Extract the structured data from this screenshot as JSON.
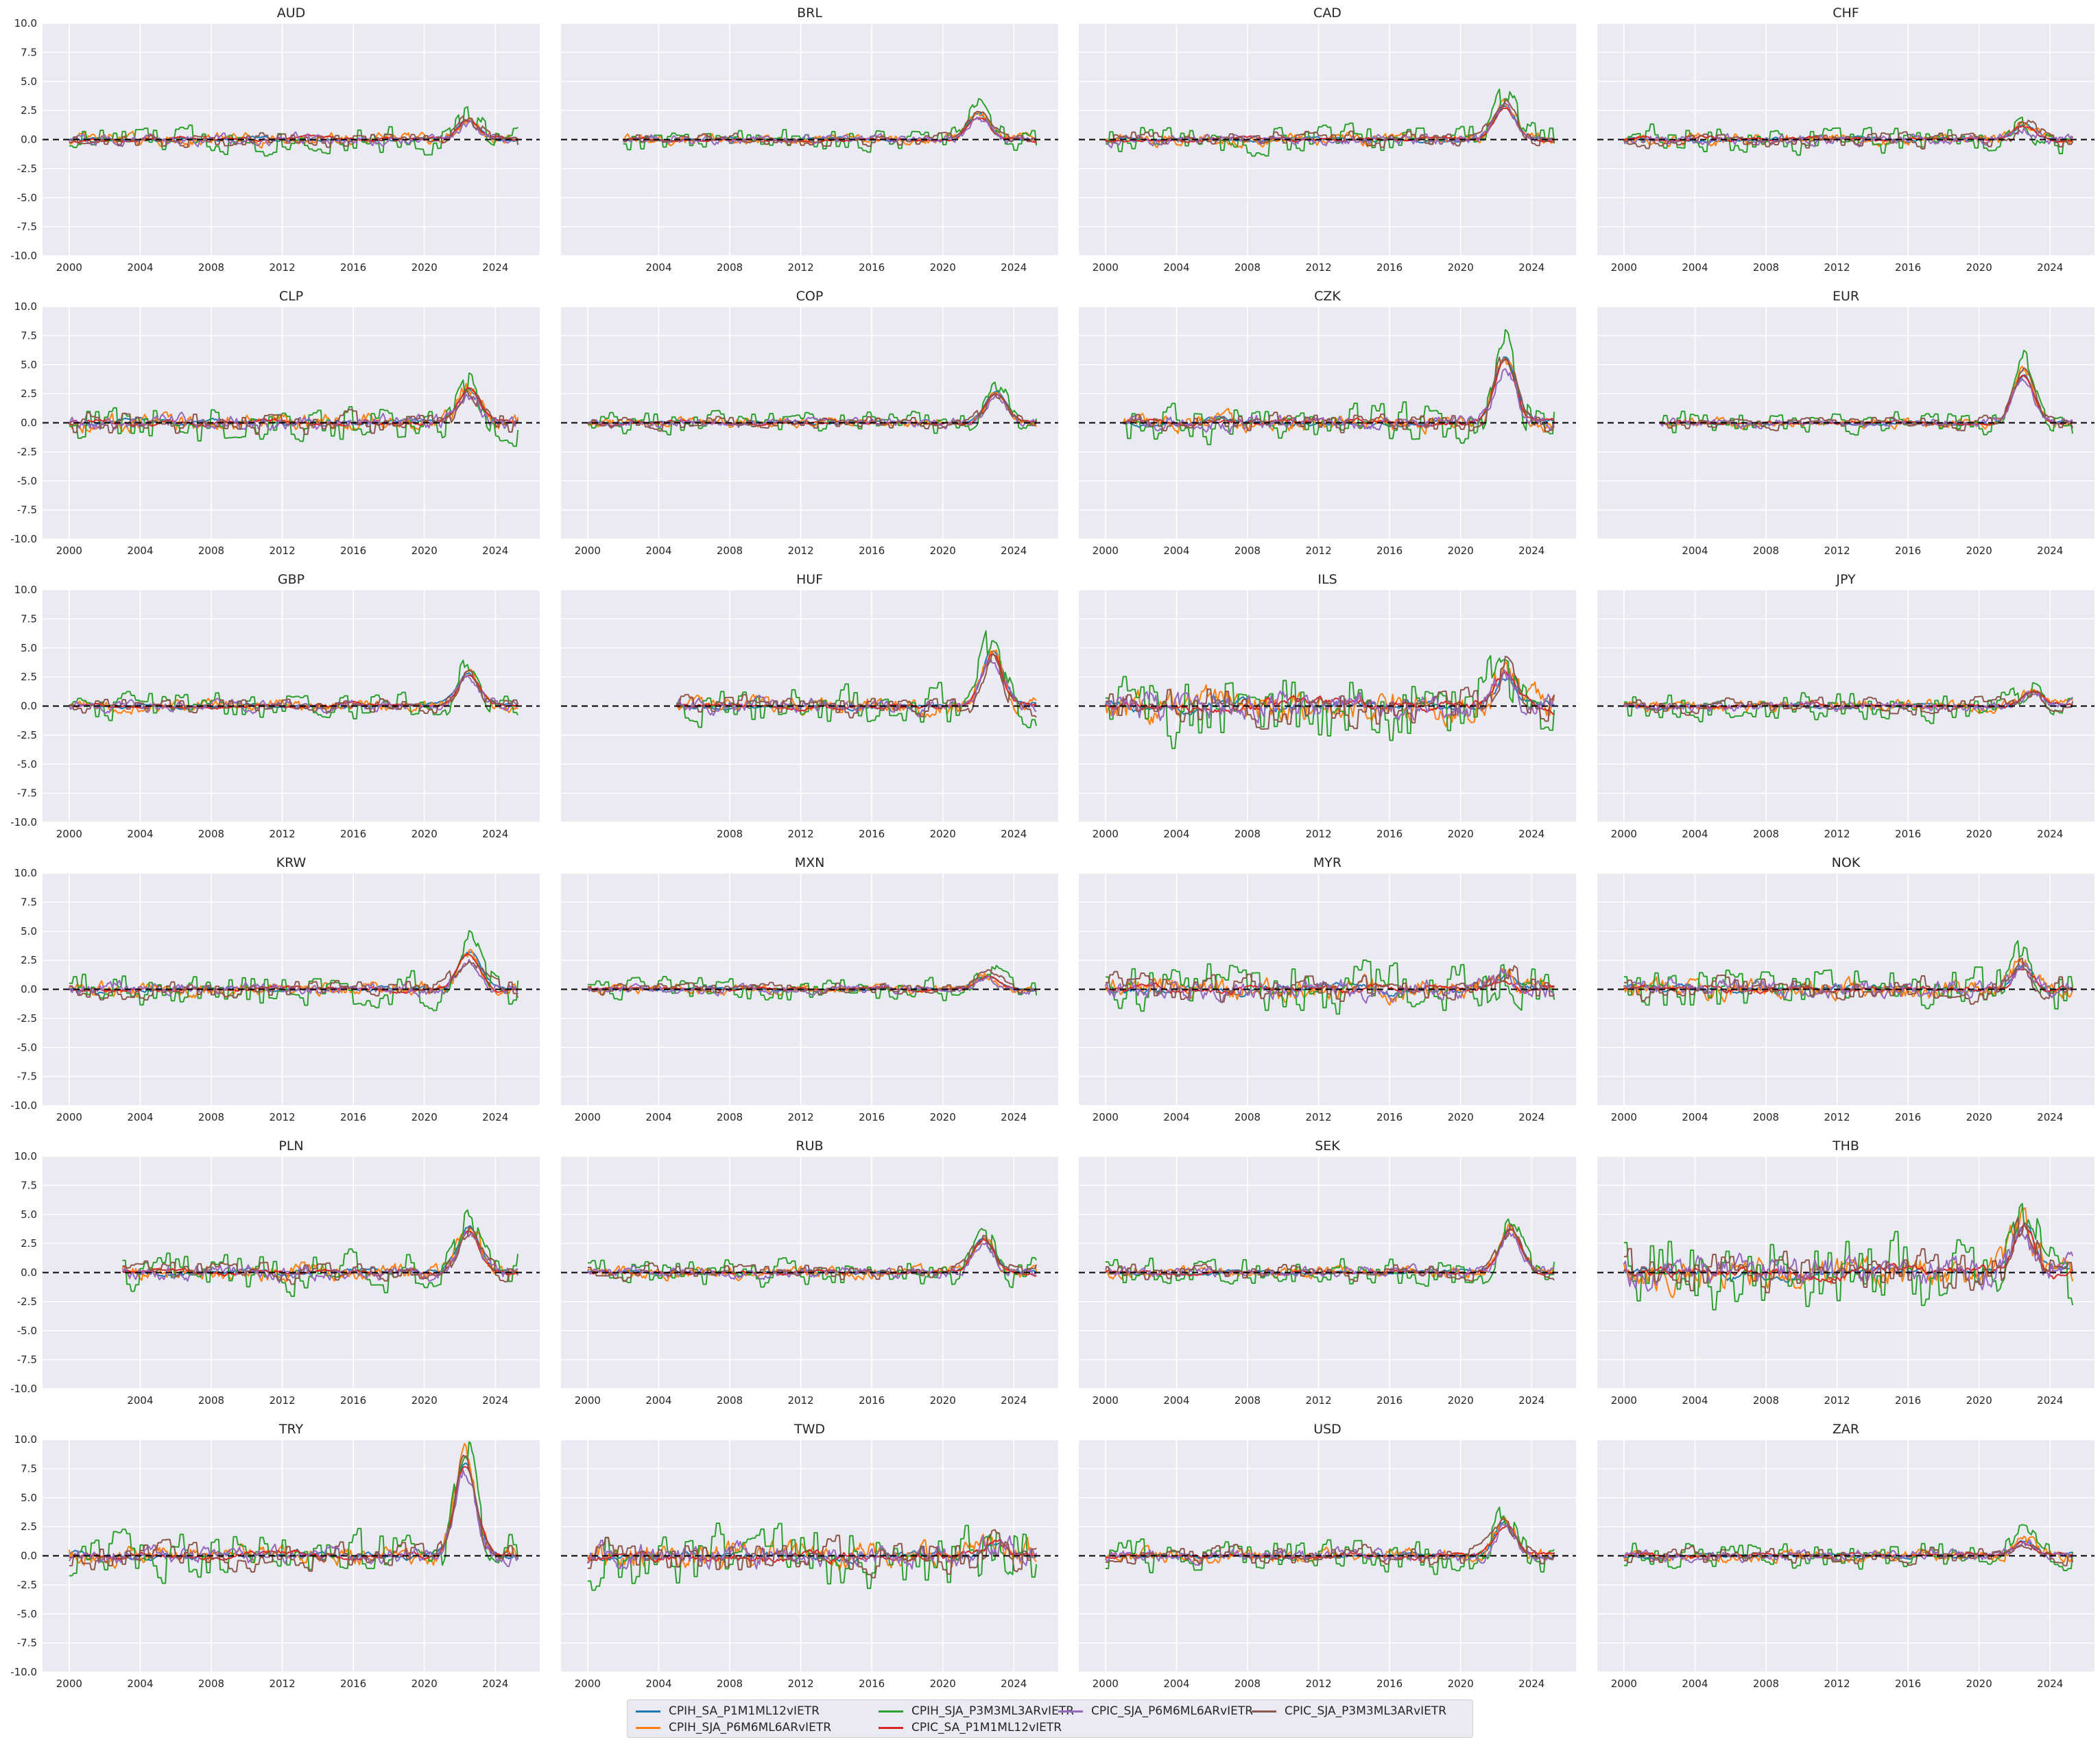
{
  "chart_data": {
    "type": "line",
    "layout": "small-multiples",
    "ylim": [
      -10,
      10
    ],
    "yticks": [
      "10.0",
      "7.5",
      "5.0",
      "2.5",
      "0.0",
      "-2.5",
      "-5.0",
      "-7.5",
      "-10.0"
    ],
    "xticks_default": [
      "2000",
      "2004",
      "2008",
      "2012",
      "2016",
      "2020",
      "2024"
    ],
    "reference_line": {
      "y": 0,
      "style": "dashed",
      "color": "#000000"
    },
    "grid": true,
    "legend_placement": "bottom-center",
    "series_names": [
      "CPIH_SA_P1M1ML12vIETR",
      "CPIH_SJA_P6M6ML6ARvIETR",
      "CPIH_SJA_P3M3ML3ARvIETR",
      "CPIC_SA_P1M1ML12vIETR",
      "CPIC_SJA_P6M6ML6ARvIETR",
      "CPIC_SJA_P3M3ML3ARvIETR"
    ],
    "series_colors": [
      "#1f77b4",
      "#ff7f0e",
      "#2ca02c",
      "#d62728",
      "#9467bd",
      "#8c564b"
    ],
    "panels": [
      {
        "title": "AUD",
        "start": 2000,
        "xticks": [
          "2000",
          "2004",
          "2008",
          "2012",
          "2016",
          "2020",
          "2024"
        ],
        "peak_year": 2022.5,
        "peak": 2.0,
        "vol": 0.5
      },
      {
        "title": "BRL",
        "start": 2002,
        "xticks": [
          "2004",
          "2008",
          "2012",
          "2016",
          "2020",
          "2024"
        ],
        "peak_year": 2022.0,
        "peak": 2.5,
        "vol": 0.4
      },
      {
        "title": "CAD",
        "start": 2000,
        "xticks": [
          "2000",
          "2004",
          "2008",
          "2012",
          "2016",
          "2020",
          "2024"
        ],
        "peak_year": 2022.5,
        "peak": 3.5,
        "vol": 0.5
      },
      {
        "title": "CHF",
        "start": 2000,
        "xticks": [
          "2000",
          "2004",
          "2008",
          "2012",
          "2016",
          "2020",
          "2024"
        ],
        "peak_year": 2022.5,
        "peak": 1.5,
        "vol": 0.5
      },
      {
        "title": "CLP",
        "start": 2000,
        "xticks": [
          "2000",
          "2004",
          "2008",
          "2012",
          "2016",
          "2020",
          "2024"
        ],
        "peak_year": 2022.5,
        "peak": 3.5,
        "vol": 0.7
      },
      {
        "title": "COP",
        "start": 2000,
        "xticks": [
          "2000",
          "2004",
          "2008",
          "2012",
          "2016",
          "2020",
          "2024"
        ],
        "peak_year": 2023.0,
        "peak": 3.0,
        "vol": 0.4
      },
      {
        "title": "CZK",
        "start": 2001,
        "xticks": [
          "2000",
          "2004",
          "2008",
          "2012",
          "2016",
          "2020",
          "2024"
        ],
        "peak_year": 2022.5,
        "peak": 6.5,
        "vol": 0.7
      },
      {
        "title": "EUR",
        "start": 2002,
        "xticks": [
          "2004",
          "2008",
          "2012",
          "2016",
          "2020",
          "2024"
        ],
        "peak_year": 2022.5,
        "peak": 5.0,
        "vol": 0.4
      },
      {
        "title": "GBP",
        "start": 2000,
        "xticks": [
          "2000",
          "2004",
          "2008",
          "2012",
          "2016",
          "2020",
          "2024"
        ],
        "peak_year": 2022.5,
        "peak": 3.2,
        "vol": 0.5
      },
      {
        "title": "HUF",
        "start": 2005,
        "xticks": [
          "2008",
          "2012",
          "2016",
          "2020",
          "2024"
        ],
        "peak_year": 2022.8,
        "peak": 5.5,
        "vol": 0.7
      },
      {
        "title": "ILS",
        "start": 2000,
        "xticks": [
          "2000",
          "2004",
          "2008",
          "2012",
          "2016",
          "2020",
          "2024"
        ],
        "peak_year": 2022.5,
        "peak": 3.0,
        "vol": 1.3
      },
      {
        "title": "JPY",
        "start": 2000,
        "xticks": [
          "2000",
          "2004",
          "2008",
          "2012",
          "2016",
          "2020",
          "2024"
        ],
        "peak_year": 2023.0,
        "peak": 1.5,
        "vol": 0.5
      },
      {
        "title": "KRW",
        "start": 2000,
        "xticks": [
          "2000",
          "2004",
          "2008",
          "2012",
          "2016",
          "2020",
          "2024"
        ],
        "peak_year": 2022.5,
        "peak": 3.8,
        "vol": 0.6
      },
      {
        "title": "MXN",
        "start": 2000,
        "xticks": [
          "2000",
          "2004",
          "2008",
          "2012",
          "2016",
          "2020",
          "2024"
        ],
        "peak_year": 2022.5,
        "peak": 1.4,
        "vol": 0.4
      },
      {
        "title": "MYR",
        "start": 2000,
        "xticks": [
          "2000",
          "2004",
          "2008",
          "2012",
          "2016",
          "2020",
          "2024"
        ],
        "peak_year": 2022.5,
        "peak": 1.5,
        "vol": 0.9
      },
      {
        "title": "NOK",
        "start": 2000,
        "xticks": [
          "2000",
          "2004",
          "2008",
          "2012",
          "2016",
          "2020",
          "2024"
        ],
        "peak_year": 2022.5,
        "peak": 2.5,
        "vol": 0.8
      },
      {
        "title": "PLN",
        "start": 2003,
        "xticks": [
          "2004",
          "2008",
          "2012",
          "2016",
          "2020",
          "2024"
        ],
        "peak_year": 2022.5,
        "peak": 4.5,
        "vol": 0.7
      },
      {
        "title": "RUB",
        "start": 2000,
        "xticks": [
          "2000",
          "2004",
          "2008",
          "2012",
          "2016",
          "2020",
          "2024"
        ],
        "peak_year": 2022.3,
        "peak": 3.3,
        "vol": 0.5
      },
      {
        "title": "SEK",
        "start": 2000,
        "xticks": [
          "2000",
          "2004",
          "2008",
          "2012",
          "2016",
          "2020",
          "2024"
        ],
        "peak_year": 2022.8,
        "peak": 4.5,
        "vol": 0.5
      },
      {
        "title": "THB",
        "start": 2000,
        "xticks": [
          "2000",
          "2004",
          "2008",
          "2012",
          "2016",
          "2020",
          "2024"
        ],
        "peak_year": 2022.5,
        "peak": 5.0,
        "vol": 1.3
      },
      {
        "title": "TRY",
        "start": 2000,
        "xticks": [
          "2000",
          "2004",
          "2008",
          "2012",
          "2016",
          "2020",
          "2024"
        ],
        "peak_year": 2022.3,
        "peak": 9.5,
        "vol": 0.8
      },
      {
        "title": "TWD",
        "start": 2000,
        "xticks": [
          "2000",
          "2004",
          "2008",
          "2012",
          "2016",
          "2020",
          "2024"
        ],
        "peak_year": 2023.0,
        "peak": 1.5,
        "vol": 1.1
      },
      {
        "title": "USD",
        "start": 2000,
        "xticks": [
          "2000",
          "2004",
          "2008",
          "2012",
          "2016",
          "2020",
          "2024"
        ],
        "peak_year": 2022.5,
        "peak": 3.2,
        "vol": 0.6
      },
      {
        "title": "ZAR",
        "start": 2000,
        "xticks": [
          "2000",
          "2004",
          "2008",
          "2012",
          "2016",
          "2020",
          "2024"
        ],
        "peak_year": 2022.5,
        "peak": 1.5,
        "vol": 0.5
      }
    ]
  }
}
